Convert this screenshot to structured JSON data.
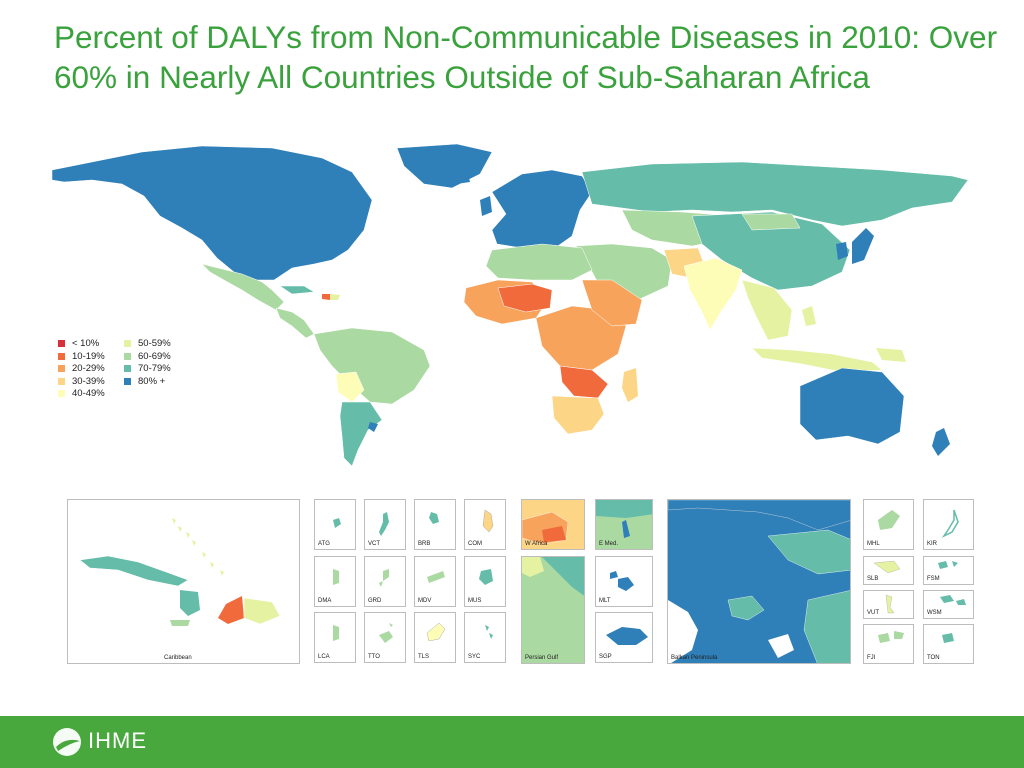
{
  "title": "Percent of DALYs from Non-Communicable Diseases in 2010: Over 60% in Nearly All Countries Outside of Sub-Saharan Africa",
  "legend": [
    {
      "label": "< 10%",
      "color": "#d7303a"
    },
    {
      "label": "10-19%",
      "color": "#f06a3c"
    },
    {
      "label": "20-29%",
      "color": "#f7a35b"
    },
    {
      "label": "30-39%",
      "color": "#fcd586"
    },
    {
      "label": "40-49%",
      "color": "#fefdb8"
    },
    {
      "label": "50-59%",
      "color": "#e5f2a2"
    },
    {
      "label": "60-69%",
      "color": "#abd9a2"
    },
    {
      "label": "70-79%",
      "color": "#64bca9"
    },
    {
      "label": "80% +",
      "color": "#2f7fb8"
    }
  ],
  "insets": {
    "caribbean": "Caribbean",
    "small": [
      "ATG",
      "VCT",
      "BRB",
      "COM",
      "DMA",
      "GRD",
      "MDV",
      "MUS",
      "LCA",
      "TTO",
      "TLS",
      "SYC"
    ],
    "w_africa": "W Africa",
    "e_med": "E Med.",
    "persian_gulf": "Persian Gulf",
    "mlt": "MLT",
    "sgp": "SGP",
    "balkan": "Balkan Peninsula",
    "pacific": [
      "MHL",
      "KIR",
      "SLB",
      "FSM",
      "VUT",
      "WSM",
      "FJI",
      "TON"
    ]
  },
  "footer": {
    "org": "IHME"
  }
}
